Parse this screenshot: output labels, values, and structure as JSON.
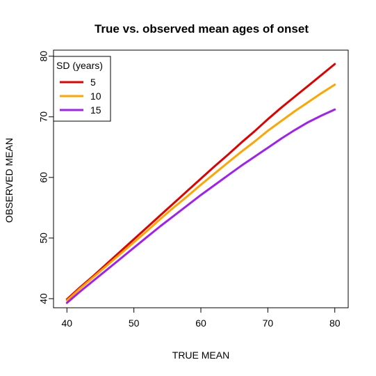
{
  "chart_data": {
    "type": "line",
    "title": "True vs. observed mean ages of onset",
    "xlabel": "TRUE MEAN",
    "ylabel": "OBSERVED MEAN",
    "xlim": [
      38,
      82
    ],
    "ylim": [
      38.5,
      81
    ],
    "xticks": [
      40,
      50,
      60,
      70,
      80
    ],
    "yticks": [
      40,
      50,
      60,
      70,
      80
    ],
    "grid": false,
    "legend": {
      "title": "SD (years)",
      "position": "top-left"
    },
    "x": [
      40,
      42,
      44,
      46,
      48,
      50,
      52,
      54,
      56,
      58,
      60,
      62,
      64,
      66,
      68,
      70,
      72,
      74,
      76,
      78,
      80
    ],
    "series": [
      {
        "name": "5",
        "color": "#e00000",
        "values": [
          39.9,
          41.9,
          43.8,
          45.8,
          47.8,
          49.8,
          51.8,
          53.8,
          55.8,
          57.8,
          59.8,
          61.8,
          63.7,
          65.7,
          67.6,
          69.6,
          71.5,
          73.3,
          75.1,
          76.9,
          78.7
        ]
      },
      {
        "name": "10",
        "color": "#ffa500",
        "values": [
          39.7,
          41.7,
          43.6,
          45.5,
          47.4,
          49.3,
          51.2,
          53.2,
          55.1,
          56.9,
          58.8,
          60.6,
          62.4,
          64.2,
          65.9,
          67.7,
          69.3,
          70.9,
          72.4,
          73.9,
          75.3
        ]
      },
      {
        "name": "15",
        "color": "#a020f0",
        "values": [
          39.3,
          41.2,
          43.0,
          44.8,
          46.6,
          48.4,
          50.2,
          52.0,
          53.7,
          55.4,
          57.1,
          58.7,
          60.3,
          61.9,
          63.4,
          64.9,
          66.4,
          67.8,
          69.1,
          70.2,
          71.2
        ]
      }
    ]
  }
}
